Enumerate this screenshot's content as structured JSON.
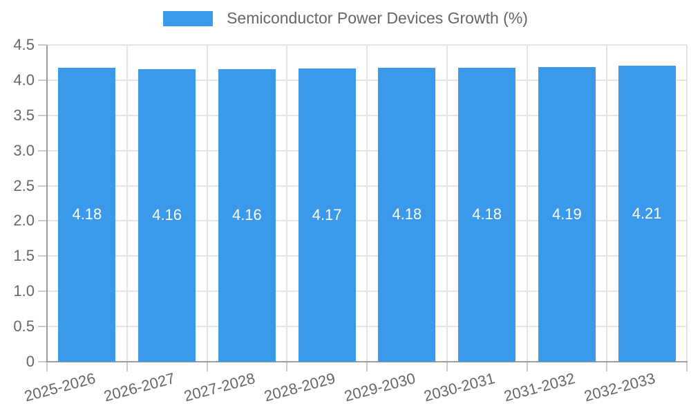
{
  "chart_data": {
    "type": "bar",
    "title": "Semiconductor Power Devices Growth (%)",
    "categories": [
      "2025-2026",
      "2026-2027",
      "2027-2028",
      "2028-2029",
      "2029-2030",
      "2030-2031",
      "2031-2032",
      "2032-2033"
    ],
    "values": [
      4.18,
      4.16,
      4.16,
      4.17,
      4.18,
      4.18,
      4.19,
      4.21
    ],
    "bar_labels": [
      "4.18",
      "4.16",
      "4.16",
      "4.17",
      "4.18",
      "4.18",
      "4.19",
      "4.21"
    ],
    "xlabel": "",
    "ylabel": "",
    "ylim": [
      0,
      4.5
    ],
    "ytick_values": [
      0,
      0.5,
      1.0,
      1.5,
      2.0,
      2.5,
      3.0,
      3.5,
      4.0,
      4.5
    ],
    "ytick_labels": [
      "0",
      "0.5",
      "1.0",
      "1.5",
      "2.0",
      "2.5",
      "3.0",
      "3.5",
      "4.0",
      "4.5"
    ],
    "grid": "on",
    "legend_position": "top-center",
    "bar_label_position": "inside-center",
    "xtick_rotation_deg": -15
  },
  "colors": {
    "bar": "#3B99EC",
    "bar_label_text": "#FFFFFF",
    "legend_text": "#666666",
    "axis_text": "#666666",
    "gridline": "#E4E4E4",
    "tick": "#C9C9C9",
    "axis_line": "#9C9C9C",
    "background": "#FFFFFF"
  }
}
